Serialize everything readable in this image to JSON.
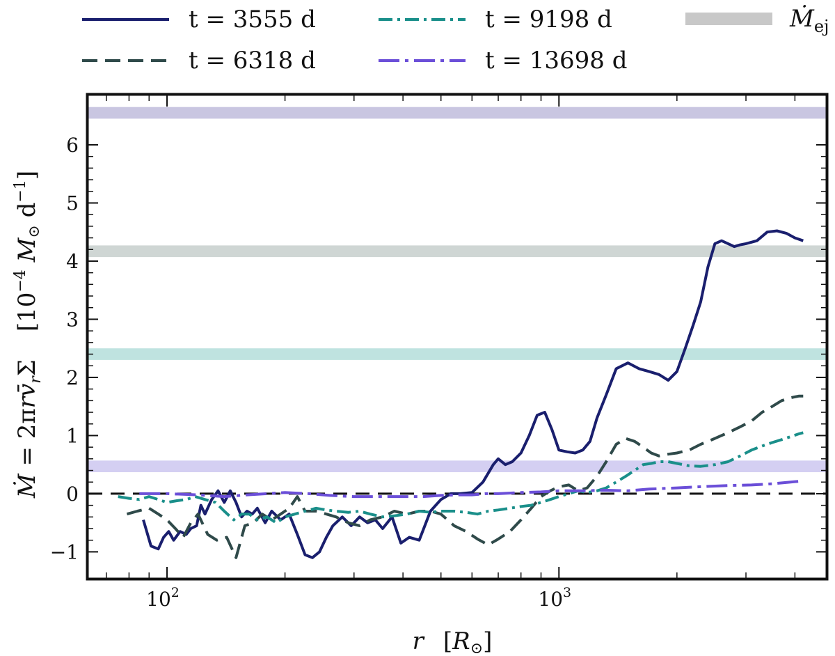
{
  "chart_data": {
    "type": "line",
    "xlabel": "r    [R⊙]",
    "ylabel_left": "Ṁ = 2πr v̄_r Σ",
    "ylabel_right": "[10⁻⁴ M⊙ d⁻¹]",
    "x_scale": "log",
    "xlim": [
      63,
      4800
    ],
    "ylim": [
      -1.45,
      6.85
    ],
    "x_ticks": [
      {
        "value": 100,
        "label": "10",
        "sup": "2"
      },
      {
        "value": 1000,
        "label": "10",
        "sup": "3"
      }
    ],
    "y_ticks": [
      -1,
      0,
      1,
      2,
      3,
      4,
      5,
      6
    ],
    "y_tick_labels": [
      "−1",
      "0",
      "1",
      "2",
      "3",
      "4",
      "5",
      "6"
    ],
    "zero_line": {
      "y": 0,
      "color": "#111111",
      "dash": "dashed"
    },
    "bands": [
      {
        "name": "t = 3555 d Ṁej",
        "center": 6.55,
        "half_width": 0.1,
        "color": "#c9c6e1"
      },
      {
        "name": "t = 6318 d Ṁej",
        "center": 4.17,
        "half_width": 0.1,
        "color": "#cfd6d4"
      },
      {
        "name": "t = 9198 d Ṁej",
        "center": 2.4,
        "half_width": 0.1,
        "color": "#bfe3e0"
      },
      {
        "name": "t = 13698 d Ṁej",
        "center": 0.47,
        "half_width": 0.1,
        "color": "#d4cff2"
      }
    ],
    "series": [
      {
        "name": "t = 3555 d",
        "color": "#1a1f6e",
        "dash": "solid",
        "x": [
          87,
          91,
          95,
          98,
          101,
          104,
          108,
          112,
          115,
          119,
          122,
          125,
          130,
          135,
          140,
          145,
          150,
          155,
          160,
          165,
          170,
          178,
          185,
          195,
          205,
          215,
          225,
          235,
          245,
          255,
          265,
          280,
          295,
          310,
          325,
          340,
          355,
          375,
          395,
          415,
          440,
          470,
          500,
          530,
          560,
          600,
          640,
          680,
          700,
          730,
          760,
          800,
          840,
          880,
          920,
          960,
          1000,
          1050,
          1100,
          1150,
          1200,
          1250,
          1320,
          1400,
          1500,
          1600,
          1700,
          1800,
          1900,
          2000,
          2100,
          2200,
          2300,
          2400,
          2500,
          2600,
          2700,
          2800,
          2900,
          3000,
          3200,
          3400,
          3600,
          3800,
          4000,
          4200
        ],
        "y": [
          -0.45,
          -0.9,
          -0.95,
          -0.75,
          -0.65,
          -0.8,
          -0.65,
          -0.7,
          -0.6,
          -0.55,
          -0.2,
          -0.35,
          -0.1,
          0.05,
          -0.15,
          0.05,
          -0.15,
          -0.4,
          -0.3,
          -0.35,
          -0.25,
          -0.5,
          -0.3,
          -0.45,
          -0.35,
          -0.7,
          -1.05,
          -1.1,
          -1.0,
          -0.75,
          -0.55,
          -0.4,
          -0.55,
          -0.4,
          -0.5,
          -0.45,
          -0.6,
          -0.4,
          -0.85,
          -0.75,
          -0.8,
          -0.3,
          -0.1,
          0.0,
          0.0,
          0.02,
          0.2,
          0.5,
          0.6,
          0.5,
          0.55,
          0.7,
          1.0,
          1.35,
          1.4,
          1.1,
          0.75,
          0.72,
          0.7,
          0.75,
          0.9,
          1.3,
          1.7,
          2.15,
          2.25,
          2.15,
          2.1,
          2.05,
          1.95,
          2.1,
          2.5,
          2.9,
          3.3,
          3.9,
          4.3,
          4.35,
          4.3,
          4.25,
          4.28,
          4.3,
          4.35,
          4.5,
          4.52,
          4.48,
          4.4,
          4.35
        ]
      },
      {
        "name": "t = 6318 d",
        "color": "#2f4a4a",
        "dash": "dashed",
        "x": [
          79,
          84,
          90,
          95,
          100,
          105,
          110,
          115,
          120,
          127,
          134,
          142,
          150,
          158,
          166,
          175,
          185,
          195,
          205,
          215,
          225,
          240,
          255,
          270,
          290,
          310,
          330,
          355,
          380,
          410,
          440,
          470,
          500,
          540,
          580,
          620,
          660,
          700,
          750,
          800,
          850,
          900,
          950,
          1000,
          1060,
          1120,
          1180,
          1250,
          1320,
          1400,
          1480,
          1560,
          1640,
          1720,
          1800,
          1900,
          2000,
          2150,
          2300,
          2500,
          2700,
          2900,
          3100,
          3300,
          3500,
          3700,
          3900,
          4100,
          4200
        ],
        "y": [
          -0.35,
          -0.3,
          -0.25,
          -0.35,
          -0.45,
          -0.6,
          -0.75,
          -0.5,
          -0.35,
          -0.7,
          -0.8,
          -0.75,
          -1.1,
          -0.55,
          -0.5,
          -0.35,
          -0.45,
          -0.35,
          -0.25,
          -0.05,
          -0.3,
          -0.3,
          -0.35,
          -0.4,
          -0.5,
          -0.55,
          -0.45,
          -0.4,
          -0.3,
          -0.35,
          -0.3,
          -0.3,
          -0.35,
          -0.55,
          -0.65,
          -0.78,
          -0.88,
          -0.78,
          -0.65,
          -0.45,
          -0.25,
          -0.05,
          0.05,
          0.12,
          0.15,
          0.05,
          0.1,
          0.3,
          0.55,
          0.85,
          0.95,
          0.9,
          0.8,
          0.7,
          0.65,
          0.68,
          0.7,
          0.75,
          0.85,
          0.95,
          1.05,
          1.15,
          1.25,
          1.4,
          1.5,
          1.6,
          1.65,
          1.68,
          1.68
        ]
      },
      {
        "name": "t = 9198 d",
        "color": "#1a8f8a",
        "dash": "dashdot",
        "x": [
          75,
          80,
          85,
          90,
          95,
          100,
          106,
          112,
          118,
          125,
          133,
          140,
          148,
          155,
          162,
          170,
          180,
          190,
          200,
          212,
          225,
          240,
          255,
          270,
          290,
          310,
          330,
          355,
          380,
          410,
          440,
          470,
          500,
          540,
          580,
          620,
          660,
          700,
          750,
          800,
          850,
          900,
          950,
          1000,
          1060,
          1120,
          1180,
          1250,
          1320,
          1400,
          1480,
          1560,
          1640,
          1720,
          1800,
          1900,
          2000,
          2150,
          2300,
          2500,
          2700,
          2900,
          3100,
          3300,
          3500,
          3700,
          3900,
          4100,
          4200
        ],
        "y": [
          -0.05,
          -0.08,
          -0.1,
          -0.05,
          -0.1,
          -0.15,
          -0.12,
          -0.1,
          -0.05,
          -0.1,
          -0.15,
          -0.3,
          -0.45,
          -0.35,
          -0.35,
          -0.45,
          -0.4,
          -0.5,
          -0.4,
          -0.35,
          -0.3,
          -0.25,
          -0.28,
          -0.3,
          -0.32,
          -0.3,
          -0.35,
          -0.4,
          -0.38,
          -0.35,
          -0.3,
          -0.32,
          -0.3,
          -0.3,
          -0.32,
          -0.35,
          -0.3,
          -0.28,
          -0.25,
          -0.22,
          -0.2,
          -0.15,
          -0.1,
          -0.05,
          0.0,
          0.05,
          0.02,
          0.05,
          0.1,
          0.2,
          0.3,
          0.4,
          0.5,
          0.52,
          0.55,
          0.55,
          0.52,
          0.48,
          0.47,
          0.5,
          0.55,
          0.65,
          0.75,
          0.82,
          0.88,
          0.93,
          0.98,
          1.03,
          1.05
        ]
      },
      {
        "name": "t = 13698 d",
        "color": "#6b4fd8",
        "dash": "dashdot-long",
        "x": [
          85,
          100,
          120,
          140,
          160,
          180,
          200,
          230,
          260,
          300,
          350,
          400,
          450,
          500,
          550,
          600,
          650,
          700,
          800,
          900,
          1000,
          1150,
          1300,
          1500,
          1700,
          2000,
          2300,
          2700,
          3100,
          3500,
          3900,
          4200
        ],
        "y": [
          0.0,
          0.0,
          -0.02,
          -0.05,
          -0.02,
          0.0,
          0.02,
          0.0,
          -0.03,
          -0.05,
          -0.05,
          -0.05,
          -0.05,
          -0.03,
          -0.02,
          -0.02,
          0.0,
          0.0,
          0.02,
          0.03,
          0.05,
          0.05,
          0.06,
          0.05,
          0.08,
          0.1,
          0.12,
          0.14,
          0.15,
          0.17,
          0.2,
          0.22
        ]
      }
    ],
    "legend": {
      "placement": "top",
      "entries": [
        {
          "label": "t = 3555 d",
          "series": 0
        },
        {
          "label": "t = 9198 d",
          "series": 2
        },
        {
          "label": "Ṁej",
          "type": "band",
          "color": "#c8c8c8"
        },
        {
          "label": "t = 6318 d",
          "series": 1
        },
        {
          "label": "t = 13698 d",
          "series": 3
        }
      ]
    }
  }
}
